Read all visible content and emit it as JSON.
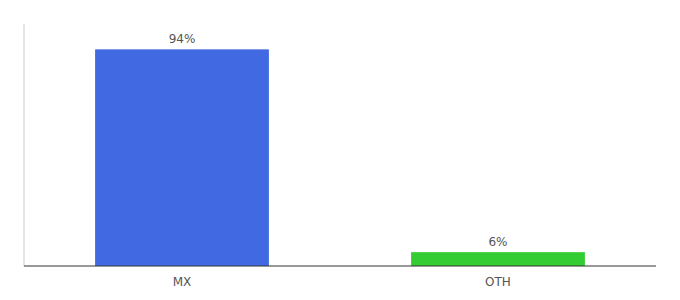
{
  "chart_data": {
    "type": "bar",
    "categories": [
      "MX",
      "OTH"
    ],
    "values": [
      94,
      6
    ],
    "value_labels": [
      "94%",
      "6%"
    ],
    "colors": [
      "#4169e1",
      "#33cc33"
    ],
    "ylim": [
      0,
      105
    ],
    "data_labels": true,
    "tick_labels": "x"
  }
}
